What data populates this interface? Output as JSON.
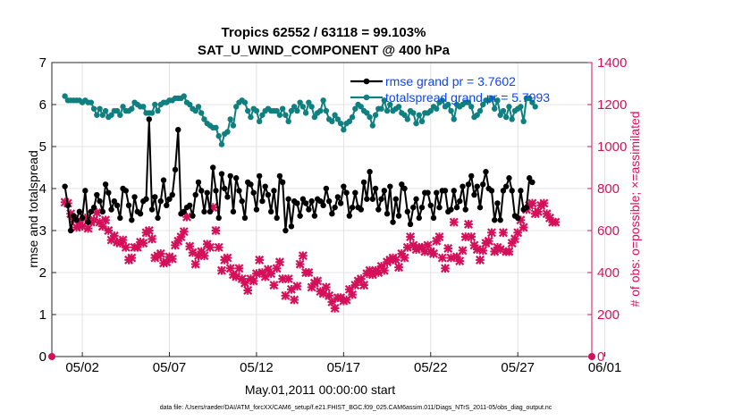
{
  "chart_data": {
    "type": "line",
    "title_line1": "Tropics 62552 / 63118 = 99.103%",
    "title_line2": "SAT_U_WIND_COMPONENT @ 400 hPa",
    "xlabel": "May.01,2011 00:00:00 start",
    "ylabel_left": "rmse and totalspread",
    "ylabel_right": "# of obs: o=possible; ×=assimilated",
    "footer": "data file: /Users/raeder/DAI/ATM_forcXX/CAM6_setup/f.e21.FHIST_BGC.f09_025.CAM6assim.011/Diags_NTrS_2011-05/obs_diag_output.nc",
    "xlim": [
      0.25,
      31.25
    ],
    "ylim_left": [
      0,
      7
    ],
    "ylim_right": [
      0,
      1400
    ],
    "x_ticks": [
      {
        "x": 2,
        "label": "05/02"
      },
      {
        "x": 7,
        "label": "05/07"
      },
      {
        "x": 12,
        "label": "05/12"
      },
      {
        "x": 17,
        "label": "05/17"
      },
      {
        "x": 22,
        "label": "05/22"
      },
      {
        "x": 27,
        "label": "05/27"
      },
      {
        "x": 32,
        "label": "06/01"
      }
    ],
    "y_ticks_left": [
      "0",
      "1",
      "2",
      "3",
      "4",
      "5",
      "6",
      "7"
    ],
    "y_ticks_right": [
      "0",
      "200",
      "400",
      "600",
      "800",
      "1000",
      "1200",
      "1400"
    ],
    "legend": [
      "rmse grand pr = 3.7602",
      "totalspread grand pr = 5.7993"
    ],
    "colors": {
      "rmse": "#000000",
      "spread": "#0f7f7f",
      "obs": "#d5105a",
      "legend_text": "#0b46ff"
    },
    "series": [
      {
        "name": "rmse",
        "values": [
          4.05,
          3.6,
          3.0,
          3.35,
          3.25,
          3.45,
          3.3,
          3.95,
          3.2,
          3.45,
          3.55,
          3.85,
          3.7,
          3.45,
          4.1,
          3.9,
          3.5,
          3.7,
          3.6,
          3.3,
          4.0,
          3.95,
          3.6,
          3.25,
          3.8,
          3.45,
          3.4,
          3.7,
          3.75,
          5.65,
          3.5,
          3.8,
          3.3,
          3.7,
          4.2,
          3.6,
          3.75,
          3.85,
          4.45,
          5.4,
          3.4,
          3.45,
          3.55,
          3.6,
          3.35,
          3.85,
          4.15,
          3.95,
          3.45,
          3.9,
          3.45,
          4.5,
          3.95,
          3.3,
          4.35,
          4.0,
          3.8,
          4.3,
          3.45,
          4.25,
          3.95,
          3.7,
          3.3,
          4.15,
          4.1,
          3.9,
          3.5,
          4.3,
          3.7,
          4.05,
          3.85,
          3.45,
          3.95,
          3.3,
          4.3,
          4.15,
          3.0,
          3.75,
          3.1,
          3.7,
          3.65,
          3.35,
          3.75,
          3.65,
          3.5,
          3.7,
          3.35,
          3.75,
          3.7,
          3.6,
          4.0,
          3.7,
          3.4,
          3.55,
          3.8,
          3.65,
          4.05,
          3.9,
          3.35,
          3.55,
          3.9,
          3.55,
          3.5,
          4.15,
          3.75,
          4.4,
          3.75,
          4.0,
          3.5,
          3.75,
          3.95,
          3.4,
          4.05,
          3.2,
          3.75,
          3.35,
          4.1,
          4.0,
          3.45,
          3.15,
          3.55,
          3.75,
          3.3,
          3.55,
          3.9,
          3.9,
          3.6,
          3.3,
          3.9,
          3.55,
          3.95,
          3.95,
          3.45,
          3.5,
          3.95,
          3.55,
          3.7,
          4.05,
          3.5,
          4.1,
          4.3,
          3.85,
          4.05,
          3.55,
          4.1,
          4.4,
          4.0,
          3.95,
          3.25,
          3.65,
          3.25,
          3.95,
          4.05,
          4.25,
          3.95,
          3.35,
          3.3,
          3.95,
          3.5,
          3.55,
          4.25,
          4.15
        ]
      },
      {
        "name": "totalspread",
        "values": [
          6.2,
          6.1,
          6.1,
          6.1,
          6.1,
          6.1,
          6.05,
          6.1,
          6.05,
          6.05,
          5.9,
          5.75,
          5.9,
          5.75,
          5.85,
          5.7,
          5.75,
          5.85,
          5.85,
          5.75,
          5.95,
          5.85,
          5.85,
          5.9,
          6.05,
          6.0,
          5.95,
          5.95,
          5.8,
          5.8,
          5.8,
          6.0,
          5.85,
          6.0,
          6.05,
          6.05,
          6.1,
          6.1,
          6.15,
          6.15,
          6.15,
          6.2,
          6.05,
          6.0,
          5.9,
          5.85,
          5.95,
          5.8,
          5.65,
          5.55,
          5.5,
          5.45,
          5.45,
          5.25,
          5.05,
          5.3,
          5.35,
          5.65,
          5.5,
          5.95,
          6.05,
          6.1,
          6.05,
          5.85,
          5.7,
          5.9,
          5.85,
          5.6,
          5.75,
          5.85,
          5.9,
          5.85,
          5.85,
          5.85,
          5.75,
          5.9,
          5.75,
          5.6,
          5.85,
          5.95,
          5.85,
          6.05,
          5.95,
          5.8,
          6.05,
          5.95,
          5.7,
          5.8,
          5.85,
          6.1,
          5.85,
          5.65,
          5.6,
          5.75,
          5.65,
          5.55,
          5.4,
          5.55,
          5.6,
          5.7,
          5.9,
          6.0,
          5.95,
          5.85,
          5.8,
          5.7,
          5.5,
          5.75,
          5.9,
          5.9,
          6.1,
          5.85,
          6.0,
          5.85,
          5.9,
          5.95,
          5.8,
          5.75,
          5.65,
          5.85,
          5.8,
          5.55,
          5.75,
          5.6,
          5.8,
          5.8,
          5.85,
          5.95,
          5.9,
          6.05,
          6.1,
          5.95,
          6.0,
          5.85,
          5.65,
          6.0,
          5.95,
          6.0,
          6.05,
          6.05,
          5.95,
          5.7,
          5.75,
          5.85,
          6.0,
          6.1,
          6.1,
          6.15,
          5.9,
          6.1,
          5.75,
          5.85,
          5.7,
          5.95,
          5.65,
          5.85,
          5.9,
          5.95,
          5.6,
          6.15,
          6.15,
          6.05,
          5.95
        ]
      },
      {
        "name": "obs_assimilated",
        "values": [
          735,
          730,
          680,
          655,
          615,
          640,
          620,
          660,
          610,
          640,
          650,
          685,
          640,
          620,
          650,
          600,
          555,
          575,
          545,
          540,
          555,
          520,
          460,
          470,
          520,
          520,
          545,
          540,
          590,
          600,
          560,
          470,
          480,
          490,
          445,
          450,
          475,
          465,
          530,
          550,
          570,
          595,
          665,
          525,
          495,
          440,
          480,
          500,
          480,
          535,
          520,
          710,
          600,
          520,
          410,
          460,
          470,
          420,
          390,
          380,
          420,
          370,
          350,
          315,
          370,
          360,
          395,
          460,
          400,
          380,
          415,
          395,
          340,
          420,
          450,
          370,
          290,
          370,
          320,
          270,
          335,
          440,
          480,
          400,
          400,
          330,
          350,
          360,
          310,
          300,
          330,
          290,
          260,
          230,
          280,
          280,
          265,
          270,
          320,
          295,
          340,
          360,
          370,
          340,
          395,
          410,
          390,
          410,
          400,
          430,
          410,
          450,
          460,
          470,
          460,
          425,
          490,
          470,
          520,
          570,
          530,
          510,
          520,
          520,
          500,
          530,
          500,
          490,
          550,
          570,
          470,
          420,
          515,
          470,
          640,
          475,
          455,
          505,
          570,
          630,
          570,
          530,
          510,
          460,
          505,
          540,
          550,
          590,
          500,
          520,
          510,
          590,
          500,
          500,
          540,
          560,
          590,
          650,
          615,
          700,
          720,
          730,
          680,
          690,
          720,
          730,
          680,
          660,
          640,
          640
        ]
      }
    ]
  }
}
